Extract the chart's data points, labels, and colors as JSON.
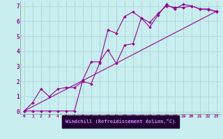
{
  "background_color": "#c8eef0",
  "grid_color": "#b0d8dc",
  "line_color": "#990099",
  "marker_color": "#990099",
  "axis_bg": "#4444aa",
  "xlabel": "Windchill (Refroidissement éolien,°C)",
  "xlim": [
    -0.5,
    23.5
  ],
  "ylim": [
    -0.15,
    7.3
  ],
  "xticks": [
    0,
    1,
    2,
    3,
    4,
    5,
    6,
    7,
    8,
    9,
    10,
    11,
    12,
    13,
    14,
    15,
    16,
    17,
    18,
    19,
    20,
    21,
    22,
    23
  ],
  "yticks": [
    0,
    1,
    2,
    3,
    4,
    5,
    6,
    7
  ],
  "series1_x": [
    0,
    1,
    2,
    3,
    4,
    5,
    6,
    7,
    8,
    9,
    10,
    11,
    12,
    13,
    14,
    15,
    16,
    17,
    18,
    19,
    20,
    21,
    22,
    23
  ],
  "series1_y": [
    0.05,
    0.6,
    1.5,
    1.0,
    1.5,
    1.6,
    1.6,
    2.0,
    1.85,
    3.2,
    5.4,
    5.2,
    6.3,
    6.6,
    6.2,
    5.6,
    6.4,
    7.1,
    6.8,
    7.1,
    7.0,
    6.8,
    6.75,
    6.65
  ],
  "series2_x": [
    0,
    1,
    2,
    3,
    4,
    5,
    6,
    7,
    8,
    9,
    10,
    11,
    12,
    13,
    14,
    15,
    16,
    17,
    18,
    19,
    20,
    21,
    22,
    23
  ],
  "series2_y": [
    0.05,
    0.05,
    0.05,
    0.05,
    0.05,
    0.05,
    0.05,
    2.1,
    3.3,
    3.3,
    4.1,
    3.2,
    4.4,
    4.5,
    6.2,
    5.9,
    6.5,
    7.0,
    6.9,
    6.9,
    7.0,
    6.8,
    6.8,
    6.6
  ],
  "series3_x": [
    0,
    23
  ],
  "series3_y": [
    0.05,
    6.65
  ]
}
